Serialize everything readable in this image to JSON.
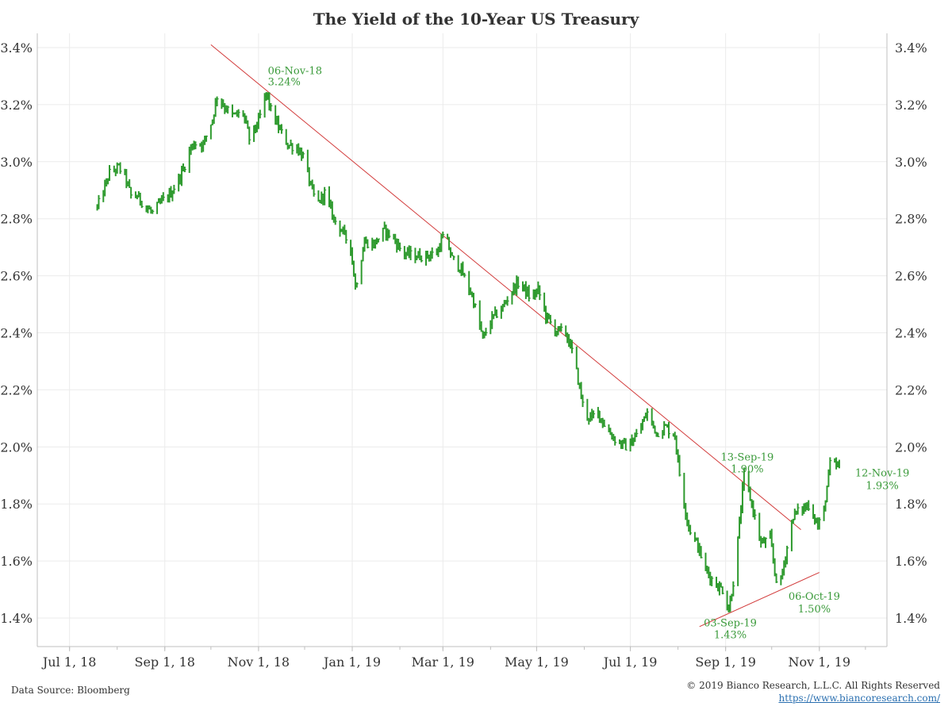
{
  "page": {
    "source": "Data Source: Bloomberg",
    "copyright": "© 2019 Bianco Research, L.L.C. All Rights Reserved",
    "url": "https://www.biancoresearch.com/"
  },
  "colors": {
    "series": "#2e9a2e",
    "trend": "#d23a3a",
    "annotation": "#3a9a3a",
    "grid": "#ebebeb",
    "axis": "#bfbfbf",
    "text": "#333333",
    "link": "#2a6fb0"
  },
  "chart_data": {
    "type": "line",
    "style": "daily high-low bars",
    "title": "The Yield of the 10-Year US Treasury",
    "xlabel": "",
    "ylabel": "",
    "ylim": [
      1.3,
      3.45
    ],
    "y_ticks": [
      "1.4%",
      "1.6%",
      "1.8%",
      "2.0%",
      "2.2%",
      "2.4%",
      "2.6%",
      "2.8%",
      "3.0%",
      "3.2%",
      "3.4%"
    ],
    "x_ticks": [
      "Jul 1, 18",
      "Sep 1, 18",
      "Nov 1, 18",
      "Jan 1, 19",
      "Mar 1, 19",
      "May 1, 19",
      "Jul 1, 19",
      "Sep 1, 19",
      "Nov 1, 19"
    ],
    "x_range": [
      "2018-06-10",
      "2019-12-15"
    ],
    "grid": true,
    "axes_both_sides": true,
    "legend": "none",
    "series": [
      {
        "anchors": [
          [
            "2018-07-19",
            2.84
          ],
          [
            "2018-07-22",
            2.88
          ],
          [
            "2018-07-27",
            2.96
          ],
          [
            "2018-08-02",
            2.98
          ],
          [
            "2018-08-06",
            2.95
          ],
          [
            "2018-08-10",
            2.88
          ],
          [
            "2018-08-14",
            2.88
          ],
          [
            "2018-08-20",
            2.84
          ],
          [
            "2018-08-24",
            2.82
          ],
          [
            "2018-08-30",
            2.86
          ],
          [
            "2018-09-05",
            2.89
          ],
          [
            "2018-09-12",
            2.96
          ],
          [
            "2018-09-18",
            3.05
          ],
          [
            "2018-09-22",
            3.07
          ],
          [
            "2018-09-26",
            3.06
          ],
          [
            "2018-10-02",
            3.15
          ],
          [
            "2018-10-05",
            3.23
          ],
          [
            "2018-10-09",
            3.2
          ],
          [
            "2018-10-15",
            3.16
          ],
          [
            "2018-10-22",
            3.17
          ],
          [
            "2018-10-26",
            3.08
          ],
          [
            "2018-11-01",
            3.14
          ],
          [
            "2018-11-06",
            3.24
          ],
          [
            "2018-11-09",
            3.18
          ],
          [
            "2018-11-14",
            3.12
          ],
          [
            "2018-11-20",
            3.06
          ],
          [
            "2018-11-26",
            3.05
          ],
          [
            "2018-12-01",
            3.01
          ],
          [
            "2018-12-05",
            2.91
          ],
          [
            "2018-12-09",
            2.85
          ],
          [
            "2018-12-14",
            2.89
          ],
          [
            "2018-12-20",
            2.8
          ],
          [
            "2018-12-25",
            2.76
          ],
          [
            "2018-12-31",
            2.7
          ],
          [
            "2019-01-03",
            2.56
          ],
          [
            "2019-01-09",
            2.72
          ],
          [
            "2019-01-15",
            2.71
          ],
          [
            "2019-01-22",
            2.76
          ],
          [
            "2019-01-28",
            2.73
          ],
          [
            "2019-02-03",
            2.68
          ],
          [
            "2019-02-10",
            2.67
          ],
          [
            "2019-02-18",
            2.67
          ],
          [
            "2019-02-25",
            2.68
          ],
          [
            "2019-03-02",
            2.75
          ],
          [
            "2019-03-07",
            2.66
          ],
          [
            "2019-03-12",
            2.63
          ],
          [
            "2019-03-20",
            2.53
          ],
          [
            "2019-03-27",
            2.38
          ],
          [
            "2019-04-02",
            2.45
          ],
          [
            "2019-04-09",
            2.49
          ],
          [
            "2019-04-15",
            2.55
          ],
          [
            "2019-04-20",
            2.58
          ],
          [
            "2019-04-27",
            2.52
          ],
          [
            "2019-05-02",
            2.55
          ],
          [
            "2019-05-07",
            2.46
          ],
          [
            "2019-05-13",
            2.41
          ],
          [
            "2019-05-20",
            2.4
          ],
          [
            "2019-05-25",
            2.32
          ],
          [
            "2019-06-01",
            2.12
          ],
          [
            "2019-06-05",
            2.1
          ],
          [
            "2019-06-10",
            2.12
          ],
          [
            "2019-06-16",
            2.06
          ],
          [
            "2019-06-22",
            2.02
          ],
          [
            "2019-06-29",
            2.0
          ],
          [
            "2019-07-05",
            2.04
          ],
          [
            "2019-07-12",
            2.12
          ],
          [
            "2019-07-18",
            2.05
          ],
          [
            "2019-07-24",
            2.07
          ],
          [
            "2019-07-30",
            2.04
          ],
          [
            "2019-08-03",
            1.86
          ],
          [
            "2019-08-08",
            1.72
          ],
          [
            "2019-08-14",
            1.65
          ],
          [
            "2019-08-19",
            1.57
          ],
          [
            "2019-08-25",
            1.52
          ],
          [
            "2019-08-30",
            1.5
          ],
          [
            "2019-09-03",
            1.43
          ],
          [
            "2019-09-07",
            1.56
          ],
          [
            "2019-09-13",
            1.9
          ],
          [
            "2019-09-18",
            1.8
          ],
          [
            "2019-09-24",
            1.66
          ],
          [
            "2019-09-30",
            1.68
          ],
          [
            "2019-10-03",
            1.56
          ],
          [
            "2019-10-06",
            1.5
          ],
          [
            "2019-10-10",
            1.62
          ],
          [
            "2019-10-15",
            1.76
          ],
          [
            "2019-10-20",
            1.78
          ],
          [
            "2019-10-26",
            1.8
          ],
          [
            "2019-10-31",
            1.72
          ],
          [
            "2019-11-04",
            1.78
          ],
          [
            "2019-11-08",
            1.94
          ],
          [
            "2019-11-12",
            1.93
          ],
          [
            "2019-11-14",
            1.94
          ]
        ]
      }
    ],
    "trendlines": [
      {
        "from": [
          "2018-10-01",
          3.41
        ],
        "to": [
          "2019-10-20",
          1.71
        ]
      },
      {
        "from": [
          "2019-08-15",
          1.37
        ],
        "to": [
          "2019-11-01",
          1.56
        ]
      }
    ],
    "annotations": [
      {
        "date_label": "06-Nov-18",
        "value_label": "3.24%",
        "x": "2018-11-06",
        "y": 3.24
      },
      {
        "date_label": "13-Sep-19",
        "value_label": "1.90%",
        "x": "2019-09-13",
        "y": 1.9
      },
      {
        "date_label": "03-Sep-19",
        "value_label": "1.43%",
        "x": "2019-09-03",
        "y": 1.43
      },
      {
        "date_label": "06-Oct-19",
        "value_label": "1.50%",
        "x": "2019-10-06",
        "y": 1.5
      },
      {
        "date_label": "12-Nov-19",
        "value_label": "1.93%",
        "x": "2019-11-12",
        "y": 1.93
      }
    ]
  }
}
